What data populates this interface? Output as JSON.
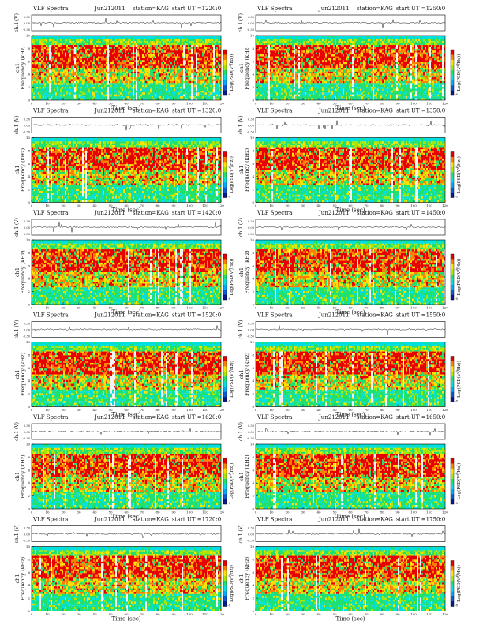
{
  "page": {
    "colors": {
      "background": "#ffffff",
      "line": "#000000"
    }
  },
  "colorscale": [
    "#0a1a8c",
    "#0a5adc",
    "#00aaff",
    "#00e0e0",
    "#20e070",
    "#a8e800",
    "#ffe000",
    "#ff8000",
    "#e80000",
    "#f4f4f4"
  ],
  "panels": [
    {
      "title": "VLF Spectra",
      "date": "Jun212011",
      "station": "station=KAG",
      "start": "start UT =1220:0"
    },
    {
      "title": "VLF Spectra",
      "date": "Jun212011",
      "station": "station=KAG",
      "start": "start UT =1250:0"
    },
    {
      "title": "VLF Spectra",
      "date": "Jun212011",
      "station": "station=KAG",
      "start": "start UT =1320:0"
    },
    {
      "title": "VLF Spectra",
      "date": "Jun212011",
      "station": "station=KAG",
      "start": "start UT =1350:0"
    },
    {
      "title": "VLF Spectra",
      "date": "Jun212011",
      "station": "station=KAG",
      "start": "start UT =1420:0"
    },
    {
      "title": "VLF Spectra",
      "date": "Jun212011",
      "station": "station=KAG",
      "start": "start UT =1450:0"
    },
    {
      "title": "VLF Spectra",
      "date": "Jun212011",
      "station": "station=KAG",
      "start": "start UT =1520:0"
    },
    {
      "title": "VLF Spectra",
      "date": "Jun212011",
      "station": "station=KAG",
      "start": "start UT =1550:0"
    },
    {
      "title": "VLF Spectra",
      "date": "Jun212011",
      "station": "station=KAG",
      "start": "start UT =1620:0"
    },
    {
      "title": "VLF Spectra",
      "date": "Jun212011",
      "station": "station=KAG",
      "start": "start UT =1650:0"
    },
    {
      "title": "VLF Spectra",
      "date": "Jun212011",
      "station": "station=KAG",
      "start": "start UT =1720:0"
    },
    {
      "title": "VLF Spectra",
      "date": "Jun212011",
      "station": "station=KAG",
      "start": "start UT =1750:0"
    }
  ],
  "chart_data": {
    "type": "heatmap",
    "panel_count": 12,
    "layout": "6 rows x 2 columns",
    "waveform": {
      "ylabel": "ch.1 (V)",
      "yticks": [
        "0.30",
        "0.00",
        "-0.30"
      ],
      "ylim": [
        -0.3,
        0.3
      ]
    },
    "spectrogram": {
      "ylabel_line1": "ch1",
      "ylabel_line2": "Frequency (kHz)",
      "xlabel": "Time (sec)",
      "xlim": [
        0,
        120
      ],
      "xticks": [
        0,
        10,
        20,
        30,
        40,
        50,
        60,
        70,
        80,
        90,
        100,
        110,
        120
      ],
      "ylim": [
        0,
        10
      ],
      "yticks": [
        0,
        2,
        4,
        6,
        8,
        10
      ],
      "colorbar_label": "Log(PSD(V²/Hz))",
      "colorbar_ticks": [
        "-4",
        "-8"
      ],
      "bands": [
        {
          "from_khz": 9.3,
          "to_khz": 10,
          "level": "cyan"
        },
        {
          "from_khz": 8.6,
          "to_khz": 9.3,
          "level": "green/yellow"
        },
        {
          "from_khz": 5.0,
          "to_khz": 8.6,
          "level": "red/orange"
        },
        {
          "from_khz": 2.5,
          "to_khz": 5.0,
          "level": "green/yellow/red mixed"
        },
        {
          "from_khz": 0,
          "to_khz": 2.5,
          "level": "green/cyan"
        }
      ]
    }
  }
}
